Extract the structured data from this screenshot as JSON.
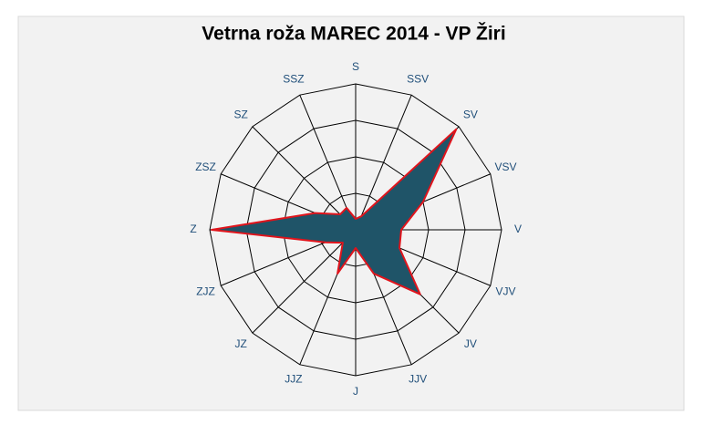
{
  "chart_data": {
    "type": "radar",
    "title": "Vetrna roža MAREC 2014 - VP Žiri",
    "categories": [
      "S",
      "SSV",
      "SV",
      "VSV",
      "V",
      "VJV",
      "JV",
      "JJV",
      "J",
      "JJZ",
      "JZ",
      "ZJZ",
      "Z",
      "ZSZ",
      "SZ",
      "SSZ"
    ],
    "series": [
      {
        "color": "#1f5468",
        "line_color": "#e0141c",
        "values": [
          0.3,
          0.4,
          3.9,
          2.0,
          1.25,
          1.3,
          2.5,
          1.3,
          0.5,
          1.3,
          0.5,
          0.9,
          3.95,
          1.2,
          0.6,
          0.65
        ]
      }
    ],
    "rlim": [
      0,
      4
    ],
    "rticks": [
      1,
      2,
      3,
      4
    ],
    "grid": true
  }
}
